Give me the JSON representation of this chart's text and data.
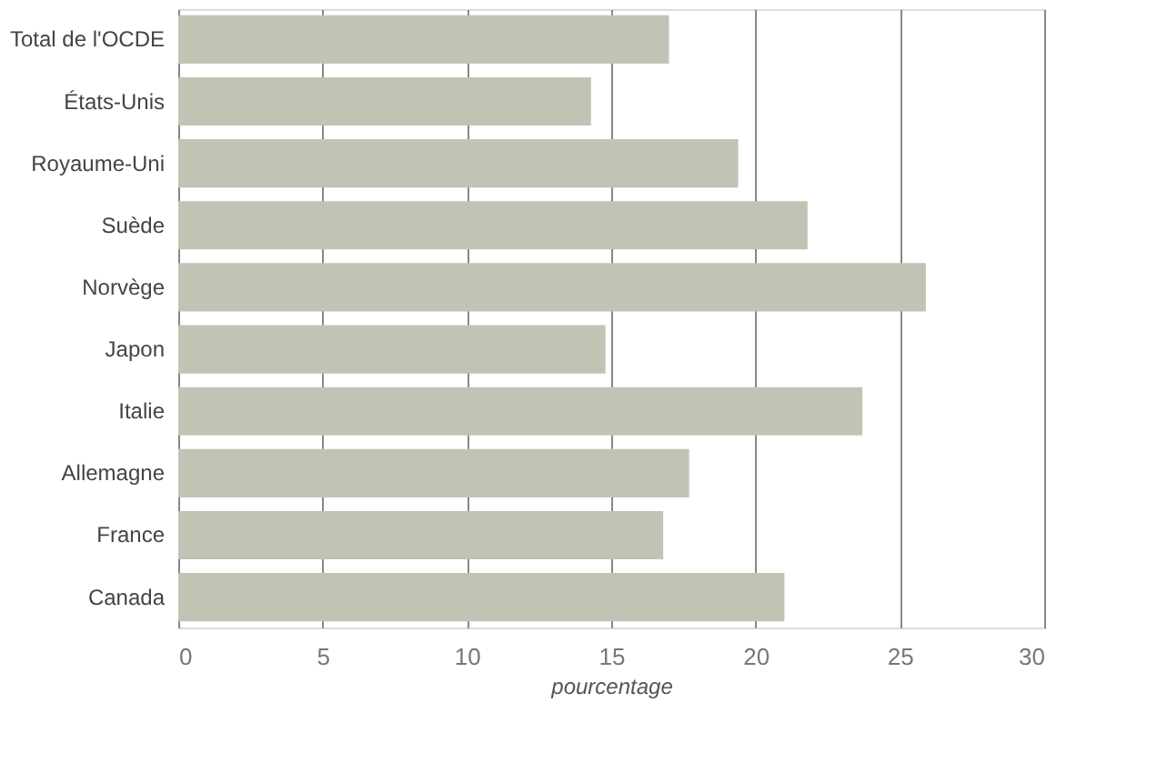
{
  "chart_data": {
    "type": "bar",
    "orientation": "horizontal",
    "categories": [
      "Total de l'OCDE",
      "États-Unis",
      "Royaume-Uni",
      "Suède",
      "Norvège",
      "Japon",
      "Italie",
      "Allemagne",
      "France",
      "Canada"
    ],
    "values": [
      17.0,
      14.3,
      19.4,
      21.8,
      25.9,
      14.8,
      23.7,
      17.7,
      16.8,
      21.0
    ],
    "color": "#c3c3b5",
    "xlim": [
      0,
      30
    ],
    "xticks": [
      0,
      5,
      10,
      15,
      20,
      25,
      30
    ],
    "xlabel": "pourcentage",
    "grid": "x"
  }
}
